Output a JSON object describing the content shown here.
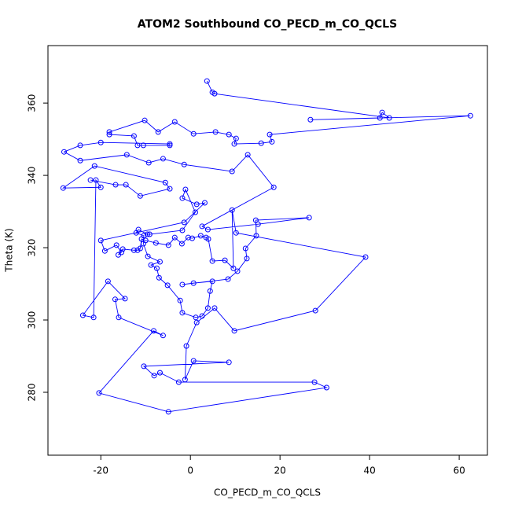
{
  "chart_data": {
    "type": "line",
    "title": "ATOM2 Southbound CO_PECD_m_CO_QCLS",
    "x_label": "CO_PECD_m_CO_QCLS",
    "y_label": "Theta (K)",
    "color": "#0000ff",
    "markers": true,
    "xlim": [
      -31.8,
      66.3
    ],
    "ylim": [
      262.6,
      375.9
    ],
    "xticks": [
      -20,
      0,
      20,
      40,
      60
    ],
    "yticks": [
      280,
      300,
      320,
      340,
      360
    ],
    "x": [
      3.7,
      4.9,
      5.4,
      44.4,
      42.8,
      42.3,
      26.8,
      62.5,
      17.7,
      18.2,
      15.8,
      9.8,
      10.2,
      8.6,
      5.6,
      0.7,
      -3.5,
      -7.2,
      -10.2,
      -18.1,
      -18.1,
      -12.6,
      -11.8,
      -10.5,
      -4.6,
      -4.6,
      -20.0,
      -24.6,
      -28.2,
      -24.6,
      -14.2,
      -9.3,
      -6.1,
      -1.4,
      9.3,
      12.8,
      18.6,
      2.6,
      3.9,
      15.1,
      26.5,
      14.6,
      14.7,
      12.3,
      12.6,
      10.5,
      8.4,
      -1.8,
      0.7,
      4.9,
      4.4,
      3.9,
      2.6,
      1.2,
      -1.8,
      -2.3,
      -5.1,
      -7.0,
      -7.5,
      -8.8,
      -6.8,
      -9.5,
      -10.5,
      -10.4,
      -12.1,
      -11.6,
      -9.6,
      -9.1,
      -1.8,
      1.1,
      -1.1,
      -1.8,
      1.4,
      3.2,
      -1.4,
      -20.0,
      -19.1,
      -16.5,
      -15.4,
      -16.1,
      -15.1,
      -12.6,
      -11.8,
      -11.2,
      -10.9,
      -10.0,
      -7.7,
      -4.9,
      -3.5,
      -1.9,
      -0.5,
      0.4,
      2.3,
      3.5,
      4.0,
      4.9,
      7.7,
      9.6,
      9.3,
      10.2,
      39.1,
      27.9,
      9.8,
      5.4,
      1.4,
      -0.9,
      -1.2,
      0.7,
      8.6,
      -10.4,
      -8.1,
      -6.8,
      -2.6,
      27.7,
      30.4,
      -4.9,
      -20.4,
      -8.2,
      -6.1,
      -16.0,
      -16.8,
      -14.6,
      -18.4,
      -24.0,
      -21.6,
      -21.1,
      -20.0,
      -28.4,
      -21.4,
      -5.6,
      -4.6,
      -11.2,
      -14.4,
      -16.7,
      -22.3
    ],
    "values": [
      366.1,
      363.0,
      362.6,
      355.9,
      357.4,
      355.9,
      355.4,
      356.5,
      351.3,
      349.3,
      348.9,
      348.7,
      350.2,
      351.3,
      352.0,
      351.5,
      354.8,
      352.0,
      355.2,
      352.0,
      351.3,
      350.9,
      348.3,
      348.3,
      348.3,
      348.7,
      349.1,
      348.3,
      346.5,
      344.1,
      345.7,
      343.5,
      344.6,
      343.0,
      341.1,
      345.7,
      336.7,
      325.9,
      325.0,
      326.5,
      328.3,
      327.6,
      323.3,
      319.8,
      317.0,
      313.5,
      311.3,
      309.8,
      310.2,
      310.7,
      308.0,
      303.3,
      301.1,
      300.7,
      302.0,
      305.4,
      309.6,
      311.7,
      314.3,
      315.2,
      316.1,
      317.6,
      321.1,
      323.3,
      324.1,
      325.0,
      323.7,
      323.7,
      324.8,
      329.8,
      336.1,
      333.7,
      332.0,
      332.4,
      327.0,
      322.0,
      319.1,
      320.7,
      318.7,
      318.0,
      319.6,
      319.3,
      319.3,
      319.8,
      322.4,
      322.0,
      321.3,
      320.7,
      322.8,
      321.1,
      322.8,
      322.6,
      323.3,
      322.8,
      322.4,
      316.3,
      316.5,
      314.3,
      330.4,
      324.1,
      317.4,
      302.6,
      297.0,
      303.3,
      299.3,
      292.8,
      283.5,
      288.7,
      288.3,
      287.2,
      284.6,
      285.4,
      282.8,
      282.8,
      281.3,
      274.6,
      279.8,
      297.0,
      295.7,
      300.7,
      305.7,
      305.9,
      310.7,
      301.3,
      300.7,
      338.7,
      336.7,
      336.5,
      342.6,
      338.0,
      336.3,
      334.3,
      337.4,
      337.4,
      338.7
    ]
  }
}
